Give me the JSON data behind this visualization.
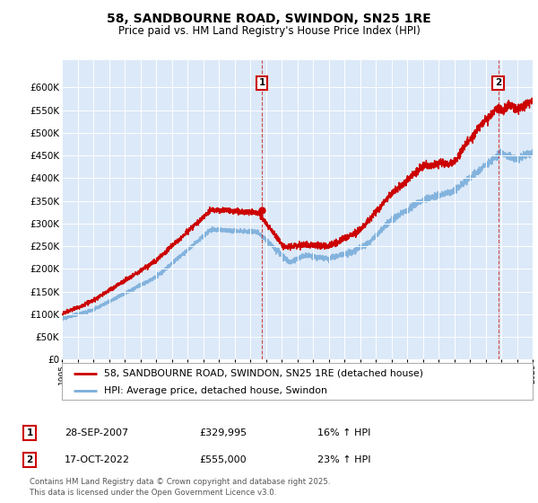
{
  "title": "58, SANDBOURNE ROAD, SWINDON, SN25 1RE",
  "subtitle": "Price paid vs. HM Land Registry's House Price Index (HPI)",
  "footnote": "Contains HM Land Registry data © Crown copyright and database right 2025.\nThis data is licensed under the Open Government Licence v3.0.",
  "legend_line1": "58, SANDBOURNE ROAD, SWINDON, SN25 1RE (detached house)",
  "legend_line2": "HPI: Average price, detached house, Swindon",
  "marker1_date": "28-SEP-2007",
  "marker1_price": "£329,995",
  "marker1_hpi": "16% ↑ HPI",
  "marker1_year": 2007.75,
  "marker1_value": 329995,
  "marker2_date": "17-OCT-2022",
  "marker2_price": "£555,000",
  "marker2_hpi": "23% ↑ HPI",
  "marker2_year": 2022.8,
  "marker2_value": 555000,
  "ylim": [
    0,
    660000
  ],
  "yticks": [
    0,
    50000,
    100000,
    150000,
    200000,
    250000,
    300000,
    350000,
    400000,
    450000,
    500000,
    550000,
    600000
  ],
  "background_color": "#dce9f8",
  "grid_color": "#ffffff",
  "hpi_line_color": "#7aaddb",
  "price_line_color": "#cc0000",
  "marker_box_color": "#cc0000",
  "fig_bg": "#ffffff"
}
